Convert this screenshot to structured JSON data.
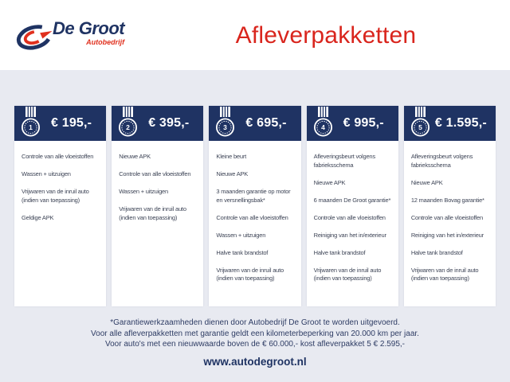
{
  "header": {
    "logo": {
      "name": "De Groot",
      "subtitle": "Autobedrijf"
    },
    "title": "Afleverpakketten"
  },
  "packages": [
    {
      "number": "1",
      "price": "€ 195,-",
      "items": [
        "Controle van alle vloeistoffen",
        "Wassen + uitzuigen",
        "Vrijwaren van de inruil auto (indien van toepassing)",
        "Geldige APK"
      ]
    },
    {
      "number": "2",
      "price": "€ 395,-",
      "items": [
        "Nieuwe APK",
        "Controle van alle vloeistoffen",
        "Wassen + uitzuigen",
        "Vrijwaren van de inruil auto (indien van toepassing)"
      ]
    },
    {
      "number": "3",
      "price": "€ 695,-",
      "items": [
        "Kleine beurt",
        "Nieuwe APK",
        "3 maanden garantie op motor en versnellingsbak*",
        "Controle van alle vloeistoffen",
        "Wassen + uitzuigen",
        "Halve tank brandstof",
        "Vrijwaren van de inruil auto (indien van toepassing)"
      ]
    },
    {
      "number": "4",
      "price": "€ 995,-",
      "items": [
        "Afleveringsbeurt volgens fabrieksschema",
        "Nieuwe APK",
        "6 maanden De Groot garantie*",
        "Controle van alle vloeistoffen",
        "Reiniging van het in/exterieur",
        "Halve tank brandstof",
        "Vrijwaren van de inruil auto (indien van toepassing)"
      ]
    },
    {
      "number": "5",
      "price": "€ 1.595,-",
      "items": [
        "Afleveringsbeurt volgens fabrieksschema",
        "Nieuwe APK",
        "12 maanden Bovag garantie*",
        "Controle van alle vloeistoffen",
        "Reiniging van het in/exterieur",
        "Halve tank brandstof",
        "Vrijwaren van de inruil auto (indien van toepassing)"
      ]
    }
  ],
  "footnotes": [
    "*Garantiewerkzaamheden dienen door Autobedrijf De Groot te worden uitgevoerd.",
    "Voor alle afleverpakketten met garantie geldt een kilometerbeperking van 20.000 km per jaar.",
    "Voor auto's met een nieuwwaarde boven de € 60.000,- kost afleverpakket 5 € 2.595,-"
  ],
  "website": "www.autodegroot.nl",
  "colors": {
    "navy": "#1f3363",
    "red": "#d9251d",
    "logo_red": "#e0301e",
    "background": "#e8eaf1",
    "card": "#ffffff",
    "list_text": "#3d4456"
  }
}
